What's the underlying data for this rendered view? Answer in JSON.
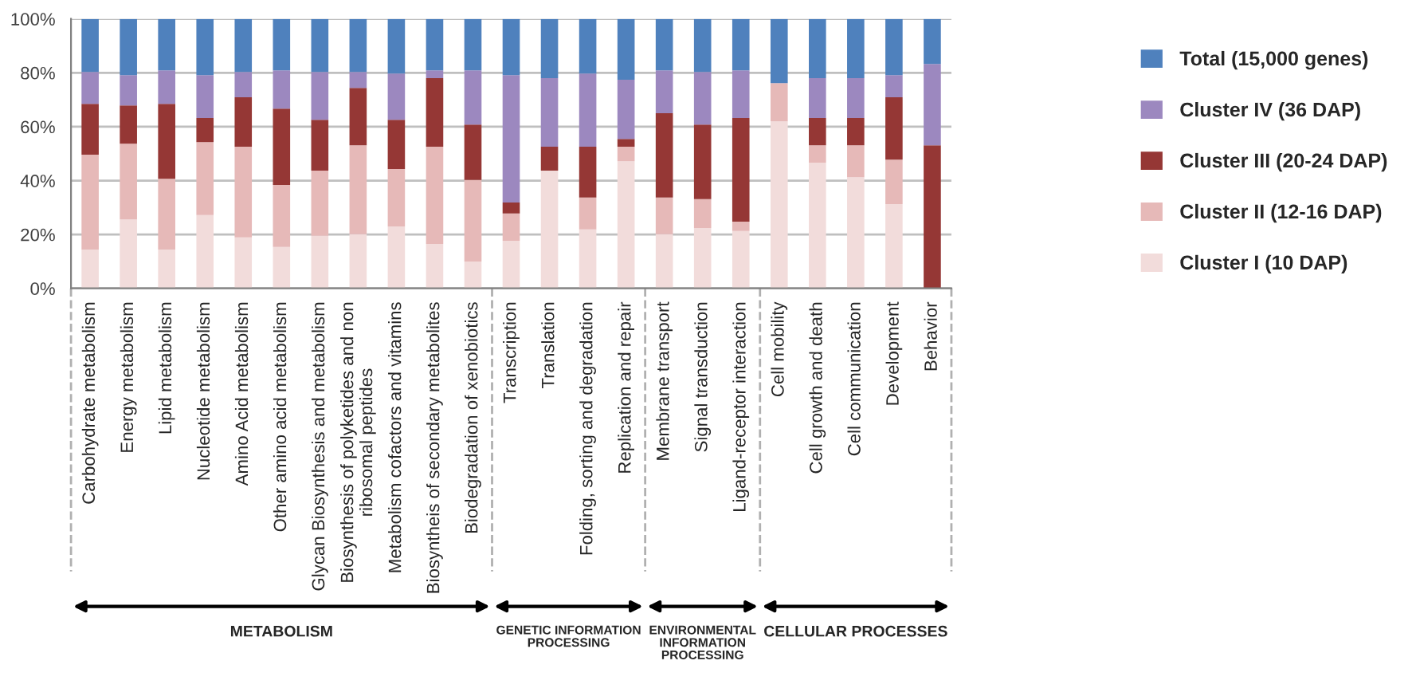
{
  "chart_data": {
    "type": "bar",
    "stacked": true,
    "categories": [
      "Carbohydrate metabolism",
      "Energy metabolism",
      "Lipid metabolism",
      "Nucleotide metabolism",
      "Amino Acid metabolism",
      "Other amino acid metabolism",
      "Glycan Biosynthesis and metabolism",
      "Biosynthesis of polyketides and non\nribosomal peptides",
      "Metabolism cofactors and vitamins",
      "Biosyntheis of secondary metabolites",
      "Biodegradation of xenobiotics",
      "Transcription",
      "Translation",
      "Folding, sorting and degradation",
      "Replication and repair",
      "Membrane transport",
      "Signal transduction",
      "Ligand-receptor interaction",
      "Cell mobility",
      "Cell growth and death",
      "Cell communication",
      "Development",
      "Behavior"
    ],
    "series": [
      {
        "name": "Cluster I (10 DAP)",
        "color": "#f2dcdb",
        "values": [
          14.4,
          25.6,
          14.4,
          27.2,
          18.9,
          15.4,
          19.5,
          20.1,
          23.0,
          16.5,
          10.0,
          17.7,
          43.7,
          21.9,
          47.2,
          20.1,
          22.4,
          21.3,
          62.0,
          46.7,
          41.3,
          31.3,
          0
        ]
      },
      {
        "name": "Cluster II (12-16 DAP)",
        "color": "#e6b9b8",
        "values": [
          35.2,
          28.1,
          26.3,
          27.1,
          33.7,
          23.0,
          24.2,
          33.0,
          21.3,
          36.1,
          30.2,
          10.1,
          0,
          11.8,
          5.4,
          13.6,
          10.7,
          3.5,
          14.2,
          6.4,
          11.8,
          16.5,
          0
        ]
      },
      {
        "name": "Cluster III (20-24 DAP)",
        "color": "#953735",
        "values": [
          18.9,
          14.2,
          27.8,
          8.9,
          18.3,
          28.3,
          18.9,
          21.3,
          18.3,
          25.4,
          20.6,
          4.1,
          8.9,
          18.9,
          2.9,
          31.3,
          27.7,
          38.4,
          0,
          10.1,
          10.1,
          23.1,
          53.1
        ]
      },
      {
        "name": "Cluster IV (36 DAP)",
        "color": "#9c88bf",
        "values": [
          11.8,
          11.2,
          12.4,
          15.9,
          9.4,
          14.2,
          17.7,
          5.9,
          17.1,
          2.9,
          20.1,
          47.2,
          25.4,
          27.1,
          21.9,
          15.9,
          19.5,
          17.7,
          0,
          14.8,
          14.8,
          8.2,
          30.2
        ]
      },
      {
        "name": "Total (15,000 genes)",
        "color": "#4f81bd",
        "values": [
          19.7,
          20.9,
          19.1,
          20.9,
          19.7,
          19.1,
          19.7,
          19.7,
          20.3,
          19.1,
          19.1,
          20.9,
          22.0,
          20.3,
          22.6,
          19.1,
          19.7,
          19.1,
          23.8,
          22.0,
          22.0,
          20.9,
          16.7
        ]
      }
    ],
    "ylim": [
      0,
      100
    ],
    "yticks": [
      {
        "value": 0,
        "label": "0%"
      },
      {
        "value": 20,
        "label": "20%"
      },
      {
        "value": 40,
        "label": "40%"
      },
      {
        "value": 60,
        "label": "60%"
      },
      {
        "value": 80,
        "label": "80%"
      },
      {
        "value": 100,
        "label": "100%"
      }
    ],
    "grid": "y",
    "legend": "right",
    "annotations": [
      "METABOLISM",
      "GENETIC INFORMATION\nPROCESSING",
      "ENVIRONMENTAL\nINFORMATION\nPROCESSING",
      "CELLULAR PROCESSES"
    ]
  }
}
